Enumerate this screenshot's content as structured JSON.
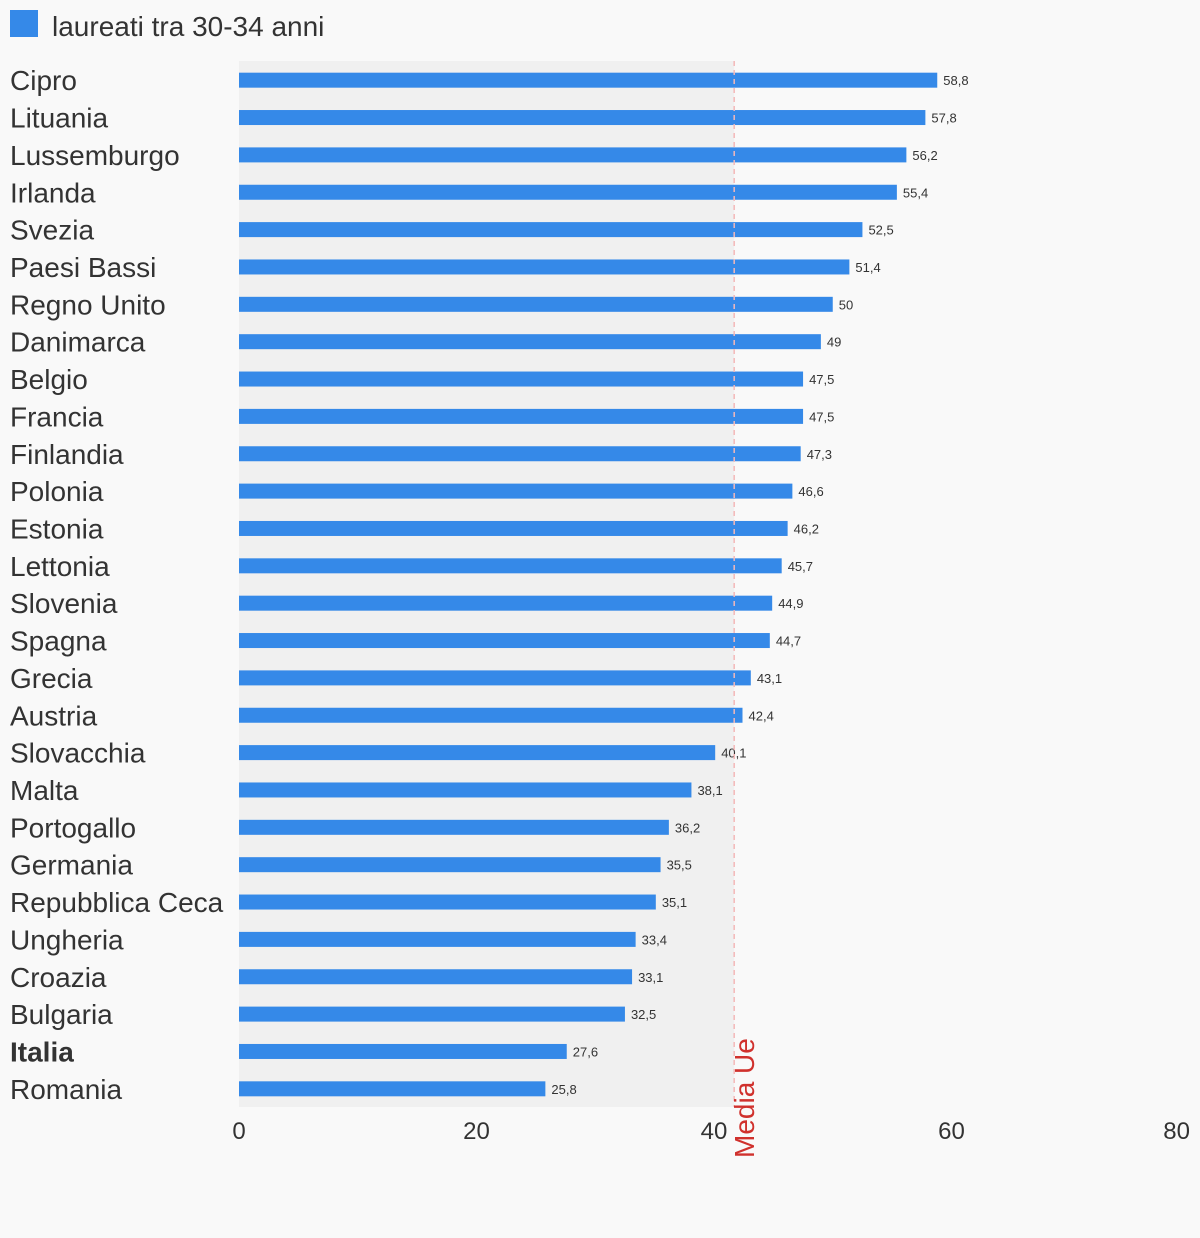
{
  "chart_data": {
    "type": "bar",
    "orientation": "horizontal",
    "title": "",
    "xlabel": "",
    "ylabel": "",
    "xlim": [
      0,
      80
    ],
    "x_ticks": [
      "0",
      "20",
      "40",
      "60",
      "80"
    ],
    "grid": false,
    "legend": {
      "position": "top-left",
      "entries": [
        "laureati tra 30-34 anni"
      ]
    },
    "series": [
      {
        "name": "laureati tra 30-34 anni",
        "color": "#3589e8"
      }
    ],
    "categories": [
      "Cipro",
      "Lituania",
      "Lussemburgo",
      "Irlanda",
      "Svezia",
      "Paesi Bassi",
      "Regno Unito",
      "Danimarca",
      "Belgio",
      "Francia",
      "Finlandia",
      "Polonia",
      "Estonia",
      "Lettonia",
      "Slovenia",
      "Spagna",
      "Grecia",
      "Austria",
      "Slovacchia",
      "Malta",
      "Portogallo",
      "Germania",
      "Repubblica Ceca",
      "Ungheria",
      "Croazia",
      "Bulgaria",
      "Italia",
      "Romania"
    ],
    "values": [
      58.8,
      57.8,
      56.2,
      55.4,
      52.5,
      51.4,
      50,
      49,
      47.5,
      47.5,
      47.3,
      46.6,
      46.2,
      45.7,
      44.9,
      44.7,
      43.1,
      42.4,
      40.1,
      38.1,
      36.2,
      35.5,
      35.1,
      33.4,
      33.1,
      32.5,
      27.6,
      25.8
    ],
    "value_labels": [
      "58,8",
      "57,8",
      "56,2",
      "55,4",
      "52,5",
      "51,4",
      "50",
      "49",
      "47,5",
      "47,5",
      "47,3",
      "46,6",
      "46,2",
      "45,7",
      "44,9",
      "44,7",
      "43,1",
      "42,4",
      "40,1",
      "38,1",
      "36,2",
      "35,5",
      "35,1",
      "33,4",
      "33,1",
      "32,5",
      "27,6",
      "25,8"
    ],
    "highlighted_category": "Italia",
    "reference_line": {
      "label": "Media Ue",
      "value": 41.7,
      "color": "#d0312d"
    }
  }
}
